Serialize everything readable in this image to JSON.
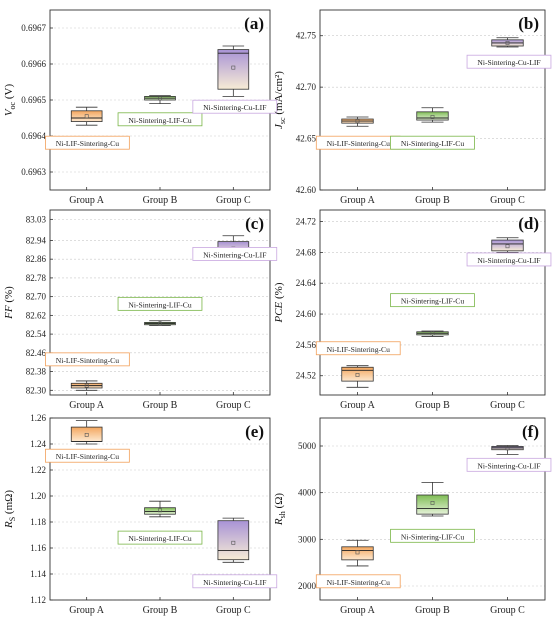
{
  "figure": {
    "panels": [
      {
        "id": "a",
        "panel_label": "(a)",
        "ylabel_main": "V",
        "ylabel_sub": "oc",
        "ylabel_tail": " (V)",
        "yticks": [
          "0.6963",
          "0.6964",
          "0.6965",
          "0.6966",
          "0.6967"
        ]
      },
      {
        "id": "b",
        "panel_label": "(b)",
        "ylabel_main": "J",
        "ylabel_sub": "sc",
        "ylabel_tail": " (mA/cm²)",
        "yticks": [
          "42.60",
          "42.65",
          "42.70",
          "42.75"
        ]
      },
      {
        "id": "c",
        "panel_label": "(c)",
        "ylabel_main": "FF",
        "ylabel_sub": "",
        "ylabel_tail": " (%)",
        "yticks": [
          "82.30",
          "82.38",
          "82.46",
          "82.54",
          "82.62",
          "82.70",
          "82.78",
          "82.86",
          "82.94",
          "83.03"
        ]
      },
      {
        "id": "d",
        "panel_label": "(d)",
        "ylabel_main": "PCE",
        "ylabel_sub": "",
        "ylabel_tail": " (%)",
        "yticks": [
          "24.52",
          "24.56",
          "24.60",
          "24.64",
          "24.68",
          "24.72"
        ]
      },
      {
        "id": "e",
        "panel_label": "(e)",
        "ylabel_main": "R",
        "ylabel_sub": "S",
        "ylabel_tail": " (mΩ)",
        "yticks": [
          "1.12",
          "1.14",
          "1.16",
          "1.18",
          "1.20",
          "1.22",
          "1.24",
          "1.26"
        ]
      },
      {
        "id": "f",
        "panel_label": "(f)",
        "ylabel_main": "R",
        "ylabel_sub": "sh",
        "ylabel_tail": " (Ω)",
        "yticks": [
          "2000",
          "3000",
          "4000",
          "5000"
        ]
      }
    ],
    "categories": [
      "Group A",
      "Group B",
      "Group C"
    ],
    "colors": {
      "group_a": "#f5b574",
      "group_b": "#8ec46a",
      "group_c": "#b9a6dc",
      "label_a": "#f2a05a",
      "label_b": "#7ab648",
      "label_c": "#c8a7e0"
    }
  },
  "chart_data": [
    {
      "type": "box",
      "panel": "(a)",
      "ylabel": "Voc (V)",
      "ylim": [
        0.69625,
        0.69675
      ],
      "categories": [
        "Group A",
        "Group B",
        "Group C"
      ],
      "labels": [
        "Ni-LIF-Sintering-Cu",
        "Ni-Sintering-LIF-Cu",
        "Ni-Sintering-Cu-LIF"
      ],
      "boxes": [
        {
          "min": 0.69643,
          "q1": 0.69644,
          "median": 0.69645,
          "q3": 0.69647,
          "max": 0.69648,
          "mean": 0.696455
        },
        {
          "min": 0.69649,
          "q1": 0.6965,
          "median": 0.696505,
          "q3": 0.69651,
          "max": 0.696512,
          "mean": 0.696505
        },
        {
          "min": 0.69651,
          "q1": 0.69653,
          "median": 0.69663,
          "q3": 0.69664,
          "max": 0.69665,
          "mean": 0.69659
        }
      ]
    },
    {
      "type": "box",
      "panel": "(b)",
      "ylabel": "Jsc (mA/cm²)",
      "ylim": [
        42.6,
        42.775
      ],
      "categories": [
        "Group A",
        "Group B",
        "Group C"
      ],
      "labels": [
        "Ni-LIF-Sintering-Cu",
        "Ni-Sintering-LIF-Cu",
        "Ni-Sintering-Cu-LIF"
      ],
      "boxes": [
        {
          "min": 42.662,
          "q1": 42.665,
          "median": 42.667,
          "q3": 42.669,
          "max": 42.671,
          "mean": 42.667
        },
        {
          "min": 42.666,
          "q1": 42.668,
          "median": 42.67,
          "q3": 42.676,
          "max": 42.68,
          "mean": 42.671
        },
        {
          "min": 42.739,
          "q1": 42.74,
          "median": 42.743,
          "q3": 42.746,
          "max": 42.748,
          "mean": 42.743
        }
      ]
    },
    {
      "type": "box",
      "panel": "(c)",
      "ylabel": "FF (%)",
      "ylim": [
        82.28,
        83.07
      ],
      "categories": [
        "Group A",
        "Group B",
        "Group C"
      ],
      "labels": [
        "Ni-LIF-Sintering-Cu",
        "Ni-Sintering-LIF-Cu",
        "Ni-Sintering-Cu-LIF"
      ],
      "boxes": [
        {
          "min": 82.3,
          "q1": 82.31,
          "median": 82.32,
          "q3": 82.33,
          "max": 82.34,
          "mean": 82.32
        },
        {
          "min": 82.577,
          "q1": 82.58,
          "median": 82.585,
          "q3": 82.59,
          "max": 82.597,
          "mean": 82.585
        },
        {
          "min": 82.88,
          "q1": 82.88,
          "median": 82.885,
          "q3": 82.935,
          "max": 82.96,
          "mean": 82.905
        }
      ]
    },
    {
      "type": "box",
      "panel": "(d)",
      "ylabel": "PCE (%)",
      "ylim": [
        24.495,
        24.735
      ],
      "categories": [
        "Group A",
        "Group B",
        "Group C"
      ],
      "labels": [
        "Ni-LIF-Sintering-Cu",
        "Ni-Sintering-LIF-Cu",
        "Ni-Sintering-Cu-LIF"
      ],
      "boxes": [
        {
          "min": 24.505,
          "q1": 24.513,
          "median": 24.527,
          "q3": 24.531,
          "max": 24.533,
          "mean": 24.521
        },
        {
          "min": 24.571,
          "q1": 24.573,
          "median": 24.575,
          "q3": 24.577,
          "max": 24.578,
          "mean": 24.575
        },
        {
          "min": 24.68,
          "q1": 24.682,
          "median": 24.691,
          "q3": 24.696,
          "max": 24.699,
          "mean": 24.688
        }
      ]
    },
    {
      "type": "box",
      "panel": "(e)",
      "ylabel": "RS (mΩ)",
      "ylim": [
        1.12,
        1.26
      ],
      "categories": [
        "Group A",
        "Group B",
        "Group C"
      ],
      "labels": [
        "Ni-LIF-Sintering-Cu",
        "Ni-Sintering-LIF-Cu",
        "Ni-Sintering-Cu-LIF"
      ],
      "boxes": [
        {
          "min": 1.24,
          "q1": 1.242,
          "median": 1.242,
          "q3": 1.253,
          "max": 1.258,
          "mean": 1.247
        },
        {
          "min": 1.184,
          "q1": 1.186,
          "median": 1.188,
          "q3": 1.191,
          "max": 1.196,
          "mean": 1.189
        },
        {
          "min": 1.149,
          "q1": 1.151,
          "median": 1.158,
          "q3": 1.181,
          "max": 1.183,
          "mean": 1.164
        }
      ]
    },
    {
      "type": "box",
      "panel": "(f)",
      "ylabel": "Rsh (Ω)",
      "ylim": [
        1700,
        5600
      ],
      "categories": [
        "Group A",
        "Group B",
        "Group C"
      ],
      "labels": [
        "Ni-LIF-Sintering-Cu",
        "Ni-Sintering-LIF-Cu",
        "Ni-Sintering-Cu-LIF"
      ],
      "boxes": [
        {
          "min": 2430,
          "q1": 2560,
          "median": 2760,
          "q3": 2840,
          "max": 2980,
          "mean": 2720
        },
        {
          "min": 3500,
          "q1": 3540,
          "median": 3660,
          "q3": 3950,
          "max": 4220,
          "mean": 3780
        },
        {
          "min": 4820,
          "q1": 4920,
          "median": 4960,
          "q3": 4990,
          "max": 5010,
          "mean": 4950
        }
      ]
    }
  ]
}
